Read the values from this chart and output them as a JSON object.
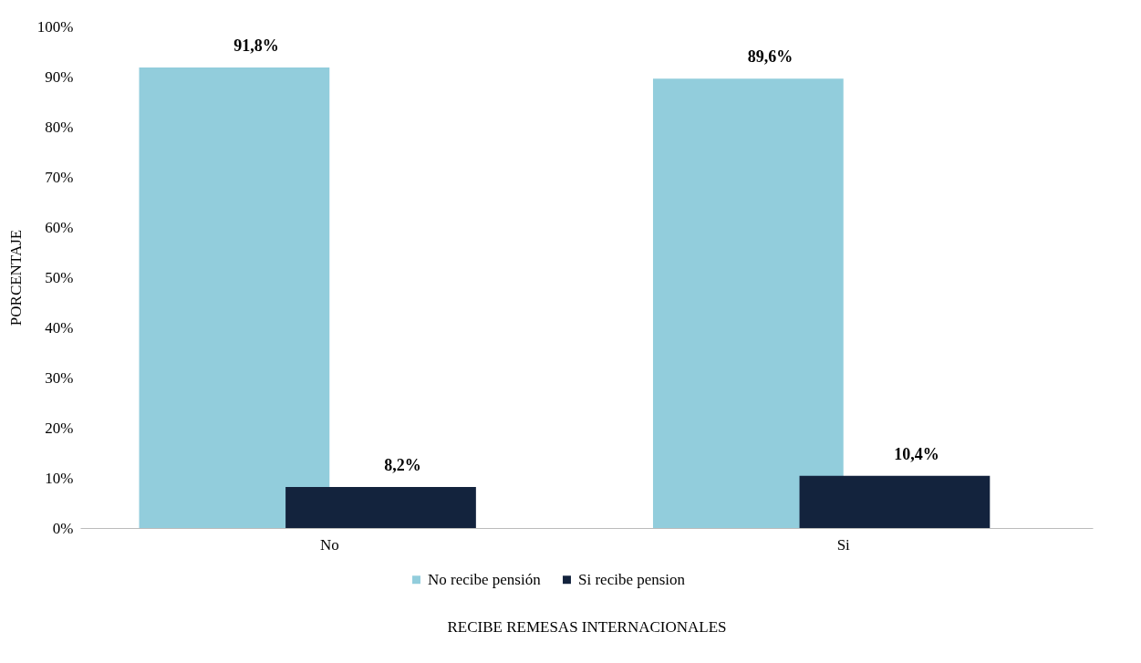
{
  "chart_data": {
    "type": "bar",
    "xlabel": "RECIBE REMESAS INTERNACIONALES",
    "ylabel": "PORCENTAJE",
    "categories": [
      "No",
      "Si"
    ],
    "series": [
      {
        "name": "No recibe pensión",
        "color": "#92cddc",
        "values": [
          91.8,
          89.6
        ],
        "value_labels": [
          "91,8%",
          "89,6%"
        ]
      },
      {
        "name": "Si recibe pension",
        "color": "#13233d",
        "values": [
          8.2,
          10.4
        ],
        "value_labels": [
          "8,2%",
          "10,4%"
        ]
      }
    ],
    "ylim": [
      0,
      100
    ],
    "yticks": [
      {
        "value": 0,
        "label": "0%"
      },
      {
        "value": 10,
        "label": "10%"
      },
      {
        "value": 20,
        "label": "20%"
      },
      {
        "value": 30,
        "label": "30%"
      },
      {
        "value": 40,
        "label": "40%"
      },
      {
        "value": 50,
        "label": "50%"
      },
      {
        "value": 60,
        "label": "60%"
      },
      {
        "value": 70,
        "label": "70%"
      },
      {
        "value": 80,
        "label": "80%"
      },
      {
        "value": 90,
        "label": "90%"
      },
      {
        "value": 100,
        "label": "100%"
      }
    ],
    "grid": false,
    "legend": "bottom"
  }
}
